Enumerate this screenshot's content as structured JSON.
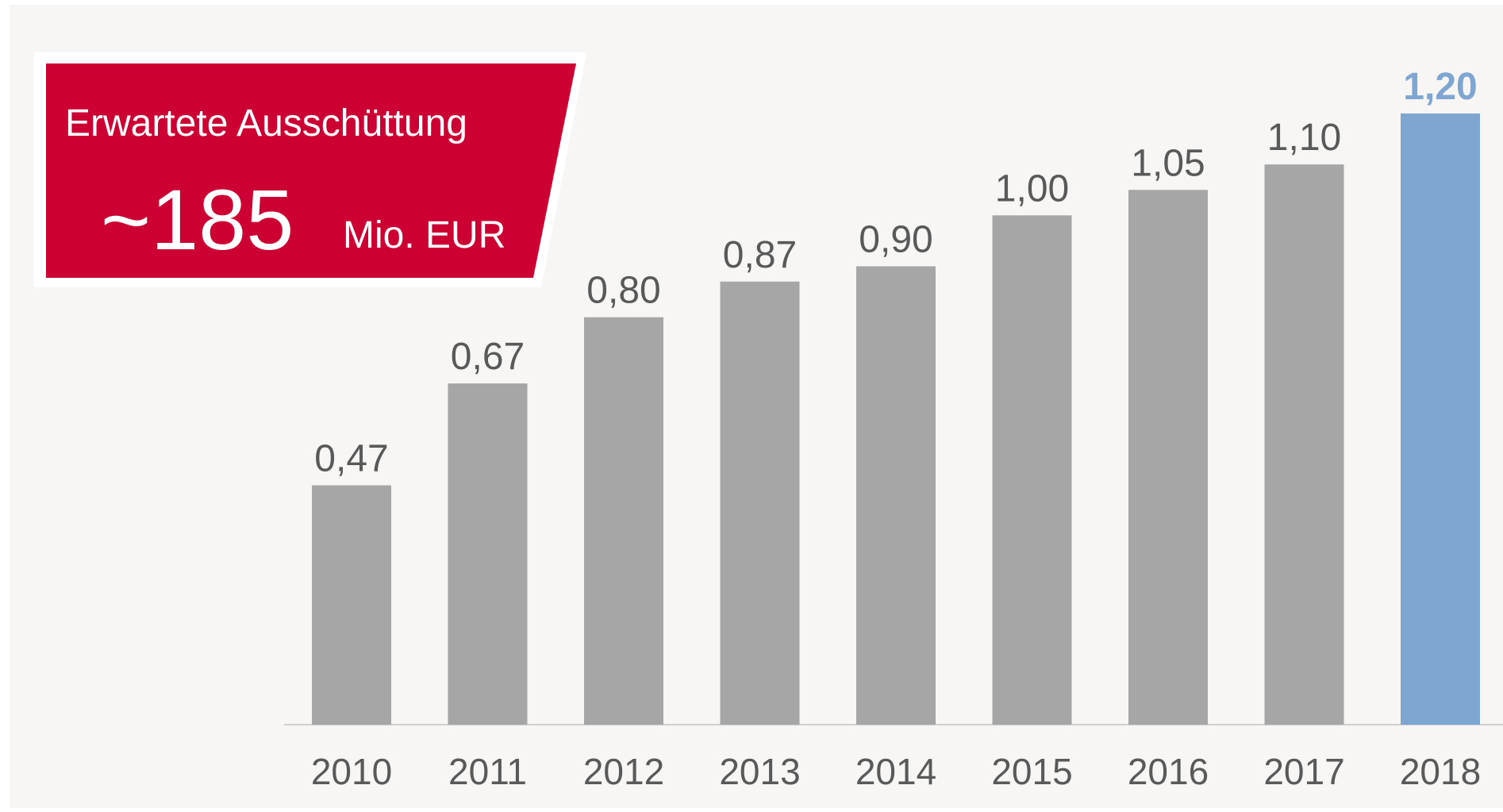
{
  "chart_data": {
    "type": "bar",
    "annotation": {
      "title": "Erwartete Ausschüttung",
      "value": "~185",
      "unit": "Mio. EUR"
    },
    "categories": [
      "2010",
      "2011",
      "2012",
      "2013",
      "2014",
      "2015",
      "2016",
      "2017",
      "2018"
    ],
    "values": [
      0.47,
      0.67,
      0.8,
      0.87,
      0.9,
      1.0,
      1.05,
      1.1,
      1.2
    ],
    "value_labels": [
      "0,47",
      "0,67",
      "0,80",
      "0,87",
      "0,90",
      "1,00",
      "1,05",
      "1,10",
      "1,20"
    ],
    "colors": [
      "#a6a6a6",
      "#a6a6a6",
      "#a6a6a6",
      "#a6a6a6",
      "#a6a6a6",
      "#a6a6a6",
      "#a6a6a6",
      "#a6a6a6",
      "#7fa6d0"
    ]
  }
}
